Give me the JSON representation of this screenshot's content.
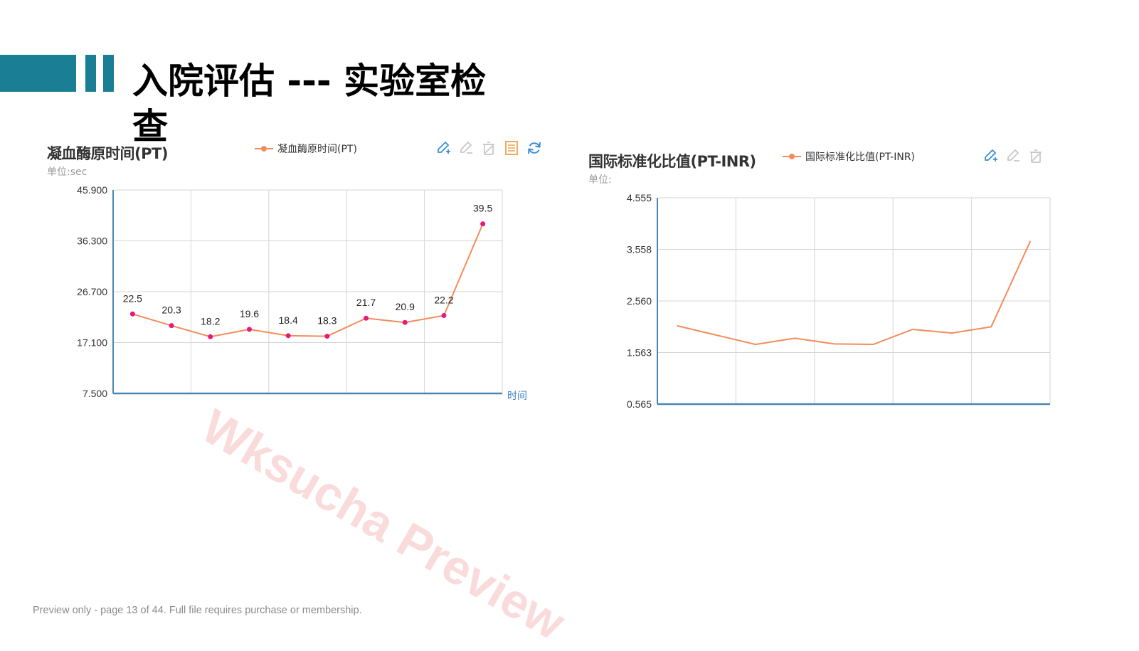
{
  "page": {
    "title": "入院评估 --- 实验室检查",
    "colors": {
      "accent": "#1a7f94",
      "series_line": "#f28c5c",
      "point": "#e8197a",
      "axis": "#4a86b5",
      "grid": "#d6d6d6"
    }
  },
  "charts": {
    "pt": {
      "title": "凝血酶原时间(PT)",
      "subtitle": "单位:sec",
      "legend": "凝血酶原时间(PT)",
      "x_axis_name": "时间",
      "y_tick_labels": [
        "45.900",
        "36.300",
        "26.700",
        "17.100",
        "7.500"
      ],
      "toolbox_icons": [
        "edit-add-icon",
        "edit-icon",
        "clear-icon",
        "data-view-icon",
        "refresh-icon"
      ]
    },
    "inr": {
      "title": "国际标准化比值(PT-INR)",
      "subtitle": "单位:",
      "legend": "国际标准化比值(PT-INR)",
      "y_tick_labels": [
        "4.555",
        "3.558",
        "2.560",
        "1.563",
        "0.565"
      ],
      "toolbox_icons": [
        "edit-add-icon",
        "edit-icon",
        "clear-icon"
      ]
    }
  },
  "chart_data": [
    {
      "type": "line",
      "title": "凝血酶原时间(PT)",
      "subtitle": "单位:sec",
      "xlabel": "时间",
      "ylabel": "",
      "ylim": [
        7.5,
        45.9
      ],
      "series": [
        {
          "name": "凝血酶原时间(PT)",
          "values": [
            22.5,
            20.3,
            18.2,
            19.6,
            18.4,
            18.3,
            21.7,
            20.9,
            22.2,
            39.5
          ]
        }
      ],
      "data_labels": true,
      "grid": true,
      "legend_position": "top-center"
    },
    {
      "type": "line",
      "title": "国际标准化比值(PT-INR)",
      "subtitle": "单位:",
      "xlabel": "",
      "ylabel": "",
      "ylim": [
        0.565,
        4.555
      ],
      "series": [
        {
          "name": "国际标准化比值(PT-INR)",
          "values": [
            2.08,
            1.9,
            1.72,
            1.84,
            1.73,
            1.72,
            2.01,
            1.94,
            2.06,
            3.72
          ]
        }
      ],
      "data_labels": false,
      "grid": true,
      "legend_position": "top-center"
    }
  ],
  "watermark": "Wksucha Preview",
  "footer": "Preview only - page 13 of 44. Full file requires purchase or membership."
}
